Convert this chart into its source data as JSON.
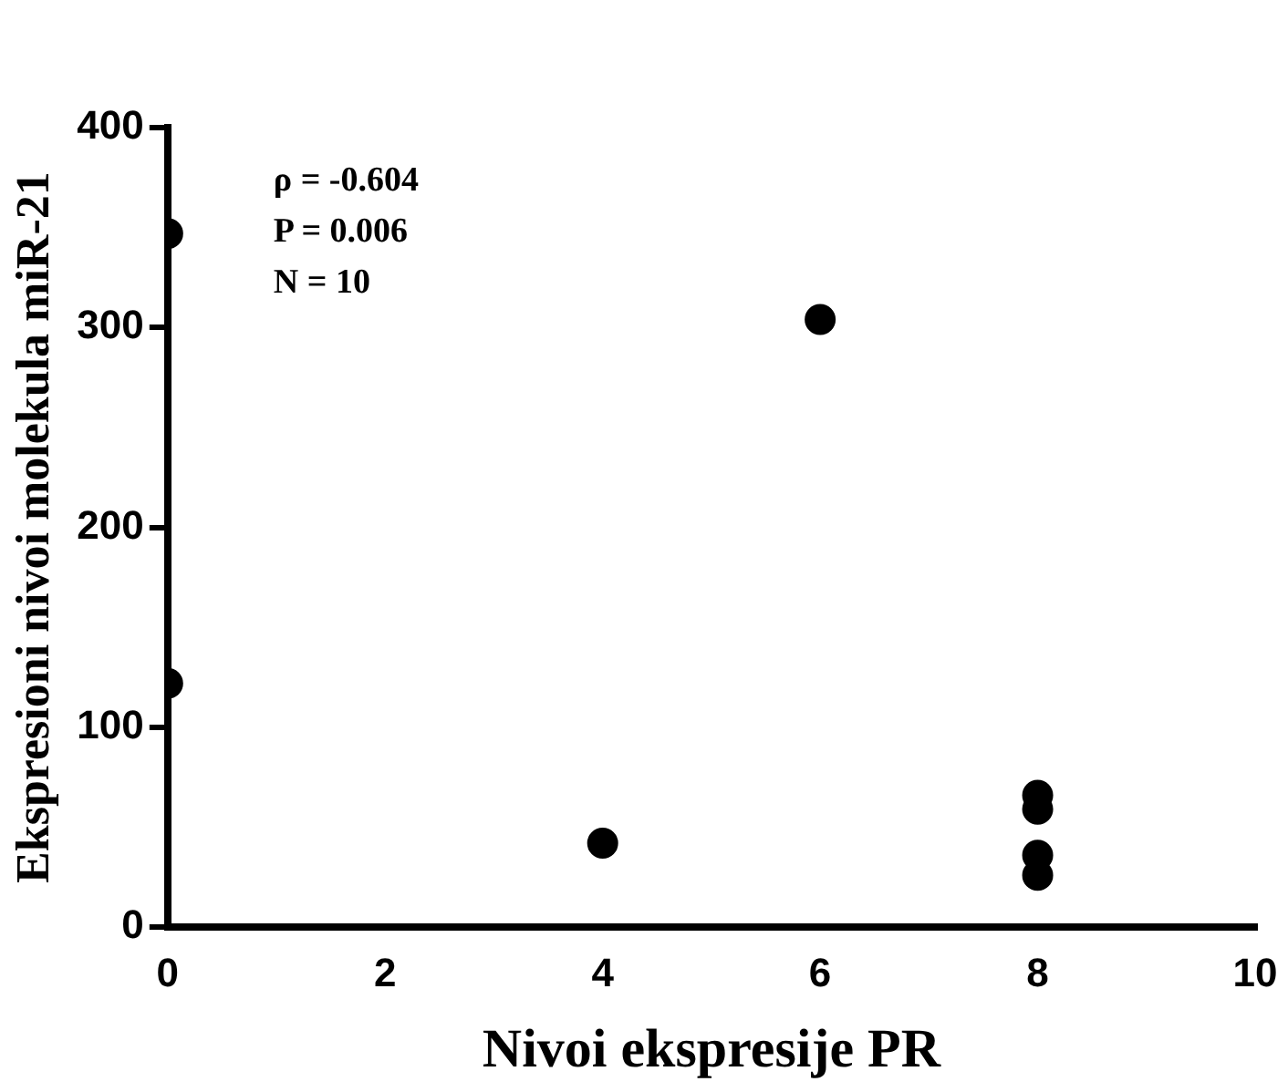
{
  "chart_data": {
    "type": "scatter",
    "xlabel": "Nivoi ekspresije PR",
    "ylabel": "Ekspresioni nivoi molekula miR-21",
    "x": [
      0,
      0,
      4,
      6,
      8,
      8,
      8,
      8
    ],
    "values": [
      347,
      122,
      42,
      304,
      66,
      59,
      36,
      26
    ],
    "color": "#000000",
    "marker": "circle",
    "xlim": [
      0,
      10
    ],
    "xticks": [
      0,
      2,
      4,
      6,
      8,
      10
    ],
    "ylim": [
      0,
      400
    ],
    "yticks": [
      0,
      100,
      200,
      300,
      400
    ],
    "grid": false,
    "legend": false,
    "annotations": [
      "ρ = -0.604",
      "P = 0.006",
      "N = 10"
    ]
  }
}
